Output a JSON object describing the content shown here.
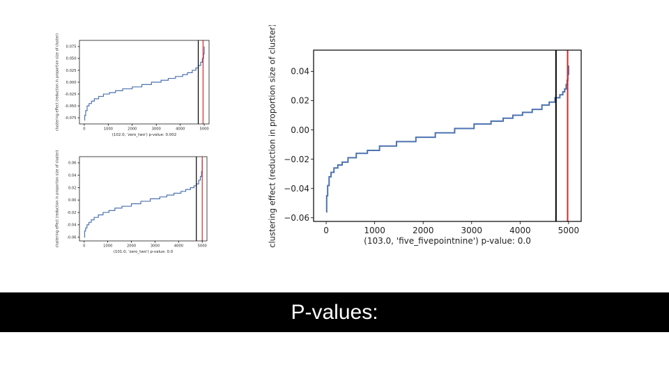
{
  "caption": {
    "text": "P-values:"
  },
  "colors": {
    "curve": "#4c72b0",
    "observed_line": "#000000",
    "threshold_line": "#d62728",
    "caption_bg": "#000000"
  },
  "chart_data": [
    {
      "id": "chart-small-top",
      "type": "line",
      "title": "",
      "xlabel": "(102.0, 'zero_two') p-value: 0.002",
      "ylabel": "clustering effect (reduction in proportion size of cluster)",
      "xlim": [
        -200,
        5200
      ],
      "ylim": [
        -0.088,
        0.088
      ],
      "xticks": [
        0,
        1000,
        2000,
        3000,
        4000,
        5000
      ],
      "xtick_labels": [
        "0",
        "1000",
        "2000",
        "3000",
        "4000",
        "5000"
      ],
      "yticks": [
        -0.075,
        -0.05,
        -0.025,
        0.0,
        0.025,
        0.05,
        0.075
      ],
      "ytick_labels": [
        "-0.075",
        "-0.050",
        "-0.025",
        "0.000",
        "0.025",
        "0.050",
        "0.075"
      ],
      "vlines": [
        {
          "x": 4750,
          "color": "#000000"
        },
        {
          "x": 4950,
          "color": "#d62728"
        }
      ],
      "series": [
        {
          "x": [
            0,
            20,
            60,
            120,
            200,
            300,
            420,
            600,
            800,
            1050,
            1300,
            1600,
            2000,
            2400,
            2800,
            3200,
            3500,
            3800,
            4100,
            4300,
            4500,
            4650,
            4750,
            4850,
            4920,
            4970,
            5000
          ],
          "y": [
            -0.08,
            -0.07,
            -0.06,
            -0.05,
            -0.045,
            -0.04,
            -0.035,
            -0.03,
            -0.025,
            -0.022,
            -0.018,
            -0.014,
            -0.01,
            -0.005,
            0.0,
            0.004,
            0.008,
            0.012,
            0.016,
            0.02,
            0.025,
            0.03,
            0.035,
            0.042,
            0.05,
            0.06,
            0.075
          ]
        }
      ],
      "grid": false
    },
    {
      "id": "chart-small-bottom",
      "type": "line",
      "title": "",
      "xlabel": "(101.0, 'zero_two') p-value: 0.0",
      "ylabel": "clustering effect (reduction in proportion size of cluster)",
      "xlim": [
        -200,
        5200
      ],
      "ylim": [
        -0.066,
        0.07
      ],
      "xticks": [
        0,
        1000,
        2000,
        3000,
        4000,
        5000
      ],
      "xtick_labels": [
        "0",
        "1000",
        "2000",
        "3000",
        "4000",
        "5000"
      ],
      "yticks": [
        -0.06,
        -0.04,
        -0.02,
        0.0,
        0.02,
        0.04,
        0.06
      ],
      "ytick_labels": [
        "-0.06",
        "-0.04",
        "-0.02",
        "0.00",
        "0.02",
        "0.04",
        "0.06"
      ],
      "vlines": [
        {
          "x": 4750,
          "color": "#000000"
        },
        {
          "x": 5000,
          "color": "#d62728"
        }
      ],
      "series": [
        {
          "x": [
            0,
            20,
            60,
            120,
            200,
            300,
            420,
            600,
            800,
            1050,
            1300,
            1600,
            2000,
            2400,
            2800,
            3200,
            3500,
            3800,
            4100,
            4300,
            4500,
            4650,
            4750,
            4850,
            4920,
            4970,
            5000
          ],
          "y": [
            -0.06,
            -0.05,
            -0.045,
            -0.04,
            -0.036,
            -0.032,
            -0.028,
            -0.024,
            -0.02,
            -0.017,
            -0.013,
            -0.01,
            -0.006,
            -0.002,
            0.002,
            0.005,
            0.008,
            0.011,
            0.014,
            0.017,
            0.02,
            0.023,
            0.026,
            0.032,
            0.038,
            0.046,
            0.065
          ]
        }
      ],
      "grid": false
    },
    {
      "id": "chart-large",
      "type": "line",
      "title": "",
      "xlabel": "(103.0, 'five_fivepointnine') p-value: 0.0",
      "ylabel": "clustering effect (reduction in proportion size of cluster)",
      "xlim": [
        -260,
        5260
      ],
      "ylim": [
        -0.0625,
        0.0545
      ],
      "xticks": [
        0,
        1000,
        2000,
        3000,
        4000,
        5000
      ],
      "xtick_labels": [
        "0",
        "1000",
        "2000",
        "3000",
        "4000",
        "5000"
      ],
      "yticks": [
        -0.06,
        -0.04,
        -0.02,
        0.0,
        0.02,
        0.04
      ],
      "ytick_labels": [
        "−0.06",
        "−0.04",
        "−0.02",
        "0.00",
        "0.02",
        "0.04"
      ],
      "vlines": [
        {
          "x": 4740,
          "color": "#000000"
        },
        {
          "x": 4980,
          "color": "#d62728"
        }
      ],
      "series": [
        {
          "x": [
            0,
            10,
            30,
            60,
            100,
            160,
            240,
            330,
            450,
            620,
            850,
            1100,
            1450,
            1850,
            2250,
            2650,
            3050,
            3400,
            3650,
            3850,
            4050,
            4250,
            4450,
            4600,
            4720,
            4820,
            4880,
            4920,
            4950,
            4970,
            4985,
            5000
          ],
          "y": [
            -0.056,
            -0.045,
            -0.038,
            -0.032,
            -0.029,
            -0.026,
            -0.024,
            -0.022,
            -0.019,
            -0.016,
            -0.014,
            -0.011,
            -0.008,
            -0.005,
            -0.002,
            0.001,
            0.004,
            0.006,
            0.008,
            0.01,
            0.012,
            0.014,
            0.017,
            0.019,
            0.022,
            0.024,
            0.026,
            0.028,
            0.031,
            0.034,
            0.038,
            0.044
          ]
        }
      ],
      "grid": false
    }
  ]
}
